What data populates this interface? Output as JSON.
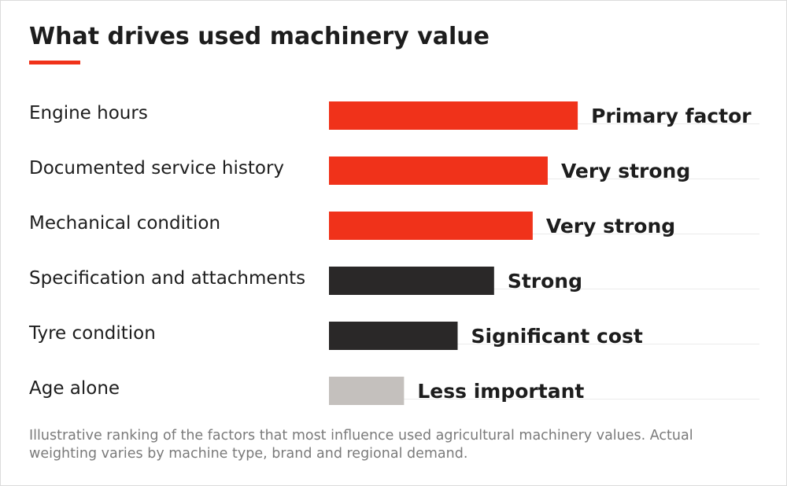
{
  "title": "What drives used machinery value",
  "footnote": "Illustrative ranking of the factors that most influence used agricultural machinery values. Actual weighting varies by machine type, brand and regional demand.",
  "colors": {
    "accent": "#f0321a",
    "dark": "#2a2828",
    "light": "#c4c0bd",
    "gridline": "#ebebeb",
    "background": "#ffffff"
  },
  "chart_data": {
    "type": "bar",
    "orientation": "horizontal",
    "categories": [
      "Engine hours",
      "Documented service history",
      "Mechanical condition",
      "Specification and attachments",
      "Tyre condition",
      "Age alone"
    ],
    "values": [
      58,
      51,
      47.5,
      38.5,
      30,
      17.5
    ],
    "labels": [
      "Primary factor",
      "Very strong",
      "Very strong",
      "Strong",
      "Significant cost",
      "Less important"
    ],
    "bar_colors": [
      "accent",
      "accent",
      "accent",
      "dark",
      "dark",
      "light"
    ],
    "xlim": [
      0,
      100
    ],
    "grid": "row baselines",
    "legend": "none",
    "xlabel": "",
    "ylabel": ""
  }
}
